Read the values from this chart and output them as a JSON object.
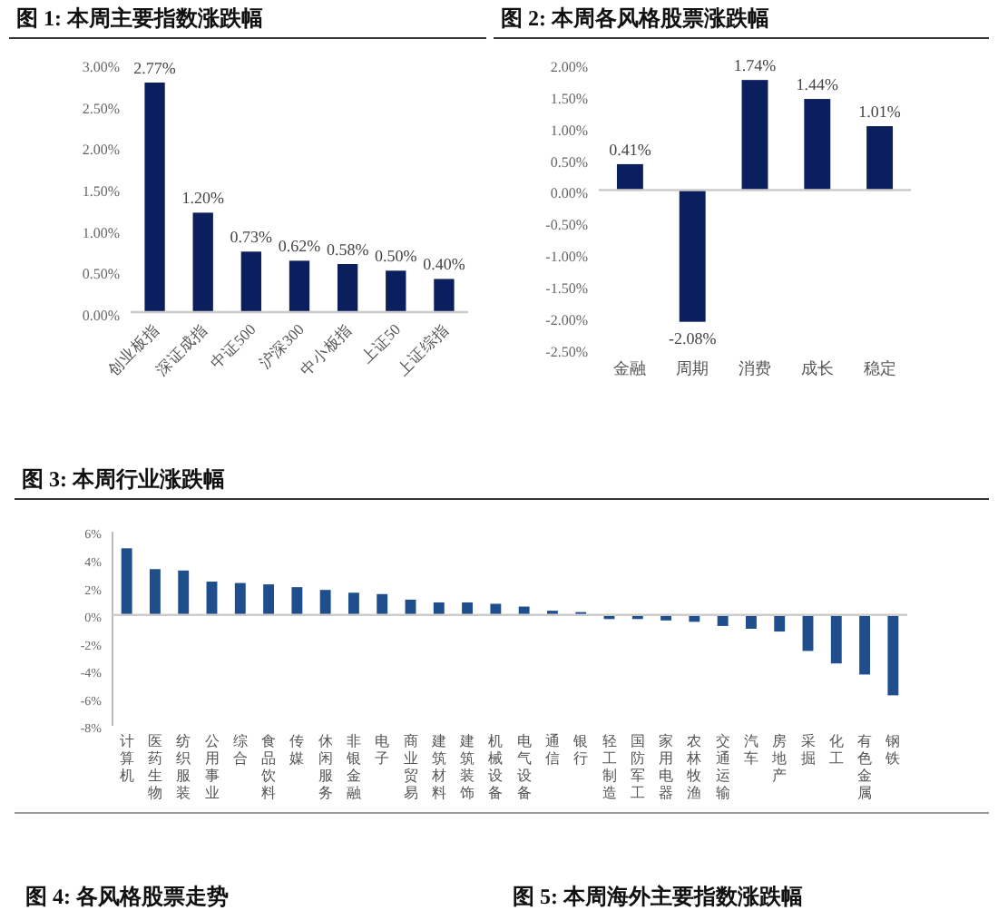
{
  "chart_data": [
    {
      "type": "bar",
      "title": "图 1: 本周主要指数涨跌幅",
      "categories": [
        "创业板指",
        "深证成指",
        "中证500",
        "沪深300",
        "中小板指",
        "上证50",
        "上证综指"
      ],
      "color": "#0b1f5e",
      "values": [
        2.77,
        1.2,
        0.73,
        0.62,
        0.58,
        0.5,
        0.4
      ],
      "value_labels": [
        "2.77%",
        "1.20%",
        "0.73%",
        "0.62%",
        "0.58%",
        "0.50%",
        "0.40%"
      ],
      "ylim": [
        0,
        3
      ],
      "yticks": [
        {
          "value": 0,
          "label": "0.00%"
        },
        {
          "value": 0.5,
          "label": "0.50%"
        },
        {
          "value": 1,
          "label": "1.00%"
        },
        {
          "value": 1.5,
          "label": "1.50%"
        },
        {
          "value": 2,
          "label": "2.00%"
        },
        {
          "value": 2.5,
          "label": "2.50%"
        },
        {
          "value": 3,
          "label": "3.00%"
        }
      ]
    },
    {
      "type": "bar",
      "title": "图 2: 本周各风格股票涨跌幅",
      "categories": [
        "金融",
        "周期",
        "消费",
        "成长",
        "稳定"
      ],
      "color": "#0b1f5e",
      "values": [
        0.41,
        -2.08,
        1.74,
        1.44,
        1.01
      ],
      "value_labels": [
        "0.41%",
        "-2.08%",
        "1.74%",
        "1.44%",
        "1.01%"
      ],
      "ylim": [
        -2.5,
        2
      ],
      "yticks": [
        {
          "value": -2.5,
          "label": "-2.50%"
        },
        {
          "value": -2,
          "label": "-2.00%"
        },
        {
          "value": -1.5,
          "label": "-1.50%"
        },
        {
          "value": -1,
          "label": "-1.00%"
        },
        {
          "value": -0.5,
          "label": "-0.50%"
        },
        {
          "value": 0,
          "label": "0.00%"
        },
        {
          "value": 0.5,
          "label": "0.50%"
        },
        {
          "value": 1,
          "label": "1.00%"
        },
        {
          "value": 1.5,
          "label": "1.50%"
        },
        {
          "value": 2,
          "label": "2.00%"
        }
      ]
    },
    {
      "type": "bar",
      "title": "图 3: 本周行业涨跌幅",
      "categories": [
        "计算机",
        "医药生物",
        "纺织服装",
        "公用事业",
        "综合",
        "食品饮料",
        "传媒",
        "休闲服务",
        "非银金融",
        "电子",
        "商业贸易",
        "建筑材料",
        "建筑装饰",
        "机械设备",
        "电气设备",
        "通信",
        "银行",
        "轻工制造",
        "国防军工",
        "家用电器",
        "农林牧渔",
        "交通运输",
        "汽车",
        "房地产",
        "采掘",
        "化工",
        "有色金属",
        "钢铁"
      ],
      "color": "#1f4e8c",
      "values": [
        4.8,
        3.3,
        3.2,
        2.4,
        2.3,
        2.2,
        2.0,
        1.8,
        1.6,
        1.5,
        1.1,
        0.9,
        0.9,
        0.8,
        0.6,
        0.3,
        0.2,
        -0.3,
        -0.3,
        -0.4,
        -0.5,
        -0.8,
        -1.0,
        -1.2,
        -2.6,
        -3.5,
        -4.3,
        -5.8
      ],
      "ylim": [
        -8,
        6
      ],
      "yticks": [
        {
          "value": -8,
          "label": "-8%"
        },
        {
          "value": -6,
          "label": "-6%"
        },
        {
          "value": -4,
          "label": "-4%"
        },
        {
          "value": -2,
          "label": "-2%"
        },
        {
          "value": 0,
          "label": "0%"
        },
        {
          "value": 2,
          "label": "2%"
        },
        {
          "value": 4,
          "label": "4%"
        },
        {
          "value": 6,
          "label": "6%"
        }
      ]
    },
    {
      "type": "other",
      "annotations": [
        "图 4: 各风格股票走势",
        "图 5: 本周海外主要指数涨跌幅"
      ]
    }
  ]
}
